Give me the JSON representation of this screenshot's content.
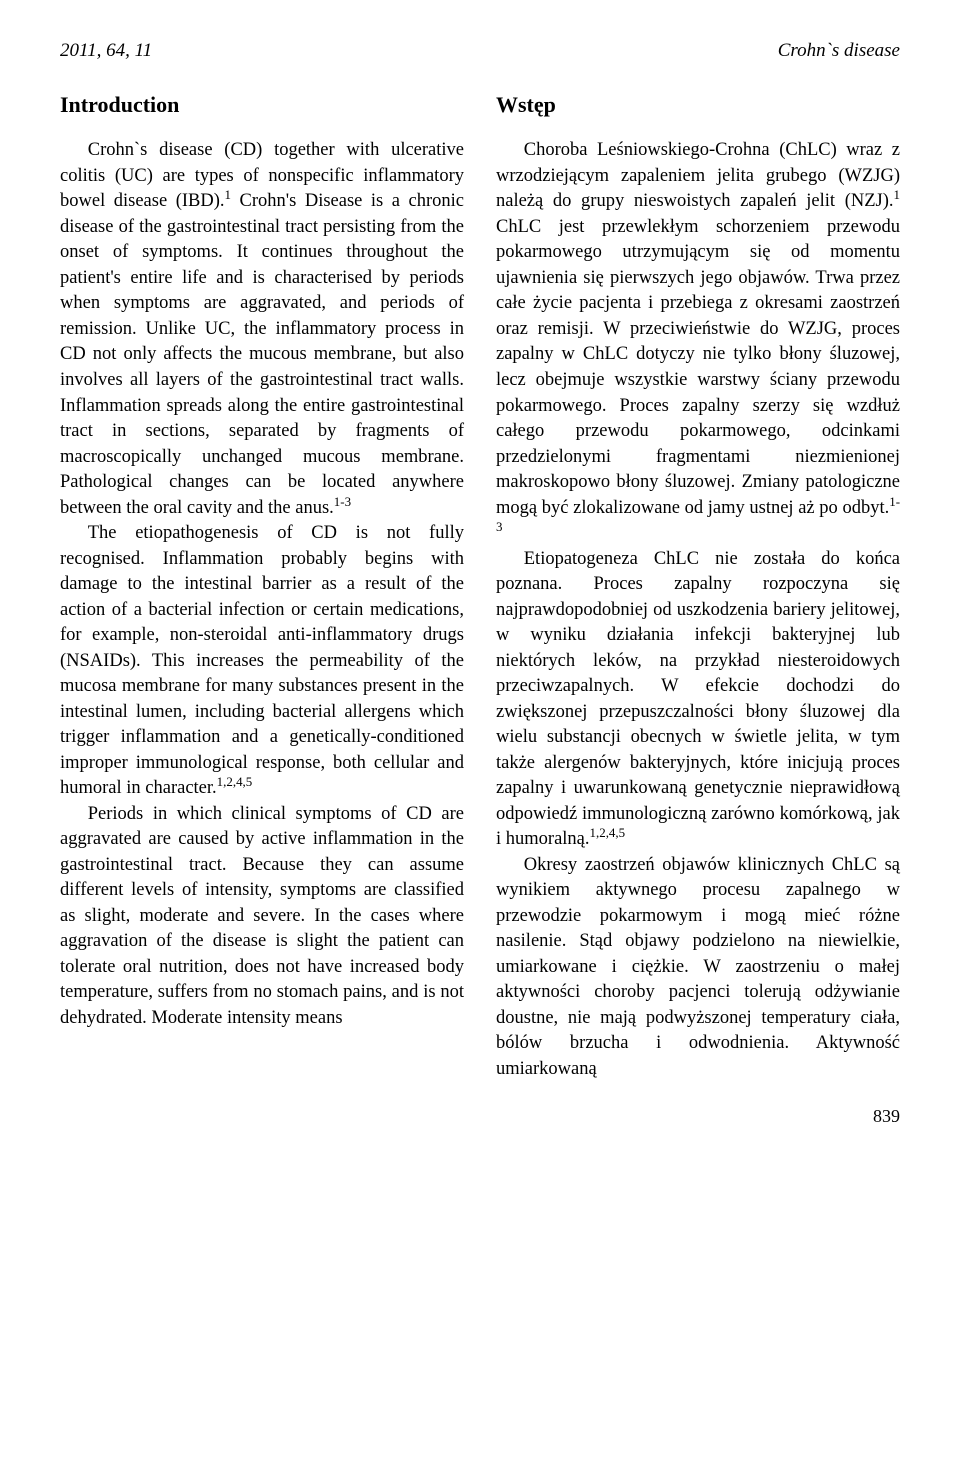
{
  "header": {
    "left": "2011, 64, 11",
    "right": "Crohn`s disease"
  },
  "titles": {
    "left": "Introduction",
    "right": "Wstęp"
  },
  "left": {
    "p1a": "Crohn`s disease (CD) together with ulcerative colitis (UC) are types of nonspecific inflammatory bowel disease (IBD).",
    "p1b": " Crohn's Disease is a chronic disease of the gastrointestinal tract persisting from the onset of symptoms. It continues throughout the patient's entire life and is characterised by periods when symptoms are aggravated, and periods of remission. Unlike UC, the inflammatory process in CD not only affects the mucous membrane, but also involves all layers of the gastrointestinal tract walls. Inflammation spreads along the entire gastrointestinal tract in sections, separated by fragments of macroscopically unchanged mucous membrane. Pathological changes can be located anywhere between the oral cavity and the anus.",
    "p2": "The etiopathogenesis of CD is not fully recognised. Inflammation probably begins with damage to the intestinal barrier as a result of the action of a bacterial infection or certain medications, for example, non-steroidal anti-inflammatory drugs (NSAIDs). This increases the permeability of the mucosa membrane for many substances present in the intestinal lumen, including bacterial allergens which trigger inflammation and a genetically-conditioned improper immunological response, both cellular and humoral in character.",
    "p3": "Periods in which clinical symptoms of CD are aggravated are caused by active inflammation in the gastrointestinal tract. Because they can assume different levels of intensity, symptoms are classified as slight, moderate and severe. In the cases where aggravation of the disease is slight the patient can tolerate oral nutrition, does not have increased body temperature, suffers from no stomach pains, and is not dehydrated. Moderate intensity means",
    "sup1": "1",
    "sup2": "1-3",
    "sup3": "1,2,4,5"
  },
  "right": {
    "p1a": "Choroba Leśniowskiego-Crohna (ChLC) wraz z wrzodziejącym zapaleniem jelita grubego (WZJG) należą do grupy nieswoistych zapaleń jelit (NZJ).",
    "p1b": " ChLC jest przewlekłym schorzeniem przewodu pokarmowego utrzymującym się od momentu ujawnienia się pierwszych jego objawów. Trwa przez całe życie pacjenta i przebiega z okresami zaostrzeń oraz remisji. W przeciwieństwie do WZJG, proces zapalny w ChLC dotyczy nie tylko błony śluzowej, lecz obejmuje wszystkie warstwy ściany przewodu pokarmowego. Proces zapalny szerzy się wzdłuż całego przewodu pokarmowego, odcinkami przedzielonymi fragmentami niezmienionej makroskopowo błony śluzowej. Zmiany patologiczne mogą być zlokalizowane od jamy ustnej aż po odbyt.",
    "p2": "Etiopatogeneza ChLC nie została do końca poznana. Proces zapalny rozpoczyna się najprawdopodobniej od uszkodzenia bariery jelitowej, w wyniku działania infekcji bakteryjnej lub niektórych leków, na przykład niesteroidowych przeciwzapalnych. W efekcie dochodzi do zwiększonej przepuszczalności błony śluzowej dla wielu substancji obecnych w świetle jelita, w tym także alergenów bakteryjnych, które inicjują proces zapalny i uwarunkowaną genetycznie nieprawidłową odpowiedź immunologiczną zarówno komórkową, jak i humoralną.",
    "p3": "Okresy zaostrzeń objawów klinicznych ChLC są wynikiem aktywnego procesu zapalnego w przewodzie pokarmowym i mogą mieć różne nasilenie. Stąd objawy podzielono na niewielkie, umiarkowane i ciężkie. W zaostrzeniu o małej aktywności choroby pacjenci tolerują odżywianie doustne, nie mają podwyższonej temperatury ciała, bólów brzucha i odwodnienia. Aktywność umiarkowaną",
    "sup1": "1",
    "sup2": "1-3",
    "sup3": "1,2,4,5"
  },
  "pagenum": "839"
}
